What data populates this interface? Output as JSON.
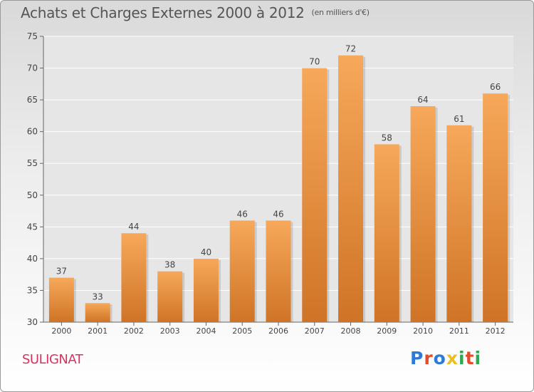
{
  "header": {
    "title": "Achats et Charges Externes 2000 à 2012",
    "unit_note": "(en milliers d'€)"
  },
  "footer": {
    "commune": "SULIGNAT",
    "logo_text": "Proxiti",
    "logo_colors": [
      "#2e7bd6",
      "#e24b2b",
      "#2e7bd6",
      "#e8c020",
      "#2fa84f",
      "#e24b2b",
      "#2fa84f"
    ]
  },
  "colors": {
    "bar_top": "#f7a85a",
    "bar_bottom": "#cf7426",
    "axis": "#666666",
    "grid": "#ffffff"
  },
  "chart_data": {
    "type": "bar",
    "categories": [
      "2000",
      "2001",
      "2002",
      "2003",
      "2004",
      "2005",
      "2006",
      "2007",
      "2008",
      "2009",
      "2010",
      "2011",
      "2012"
    ],
    "values": [
      37,
      33,
      44,
      38,
      40,
      46,
      46,
      70,
      72,
      58,
      64,
      61,
      66
    ],
    "title": "Achats et Charges Externes 2000 à 2012",
    "ylim": [
      30,
      75
    ],
    "yticks": [
      30,
      35,
      40,
      45,
      50,
      55,
      60,
      65,
      70,
      75
    ],
    "data_labels": true,
    "grid": true
  }
}
